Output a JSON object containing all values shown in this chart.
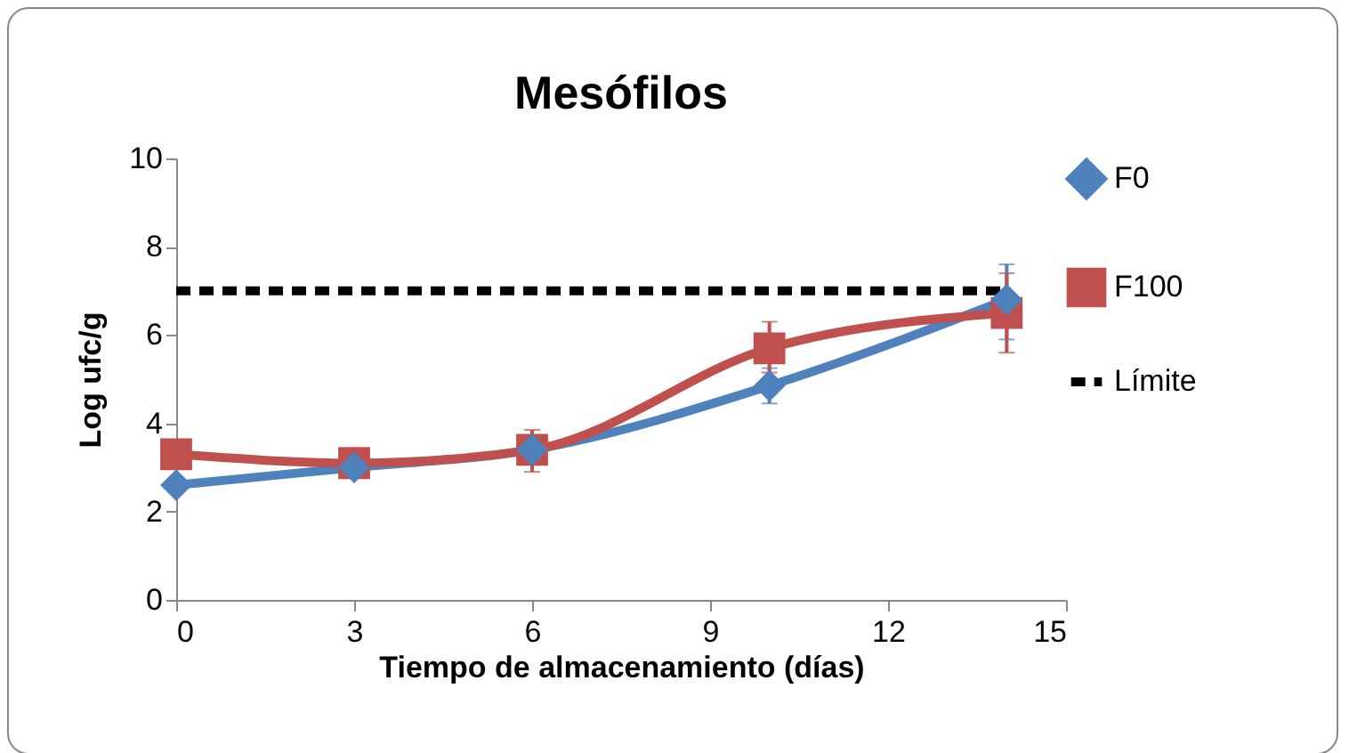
{
  "chart_data": {
    "type": "line",
    "title": "Mesófilos",
    "xlabel": "Tiempo de almacenamiento (días)",
    "ylabel": "Log ufc/g",
    "x": [
      0,
      3,
      6,
      10,
      14
    ],
    "series": [
      {
        "name": "F0",
        "color": "#4f81bd",
        "marker": "diamond",
        "values": [
          2.6,
          3.0,
          3.4,
          4.85,
          6.8
        ],
        "errors": [
          null,
          null,
          null,
          [
            4.45,
            5.25
          ],
          [
            5.9,
            7.6
          ]
        ]
      },
      {
        "name": "F100",
        "color": "#c0504d",
        "marker": "square",
        "values": [
          3.3,
          3.1,
          3.4,
          5.7,
          6.5
        ],
        "errors": [
          null,
          null,
          [
            2.9,
            3.85
          ],
          [
            5.15,
            6.3
          ],
          [
            5.6,
            7.4
          ]
        ]
      }
    ],
    "ref_lines": [
      {
        "axis": "y",
        "value": 7,
        "label": "Límite",
        "color": "#000000",
        "line_style": "dashed"
      }
    ],
    "xlim": [
      0,
      15
    ],
    "xticks": [
      0,
      3,
      6,
      9,
      12,
      15
    ],
    "ylim": [
      0,
      10
    ],
    "yticks": [
      0,
      2,
      4,
      6,
      8,
      10
    ],
    "grid": false,
    "legend": "right",
    "line_style": "solid"
  }
}
